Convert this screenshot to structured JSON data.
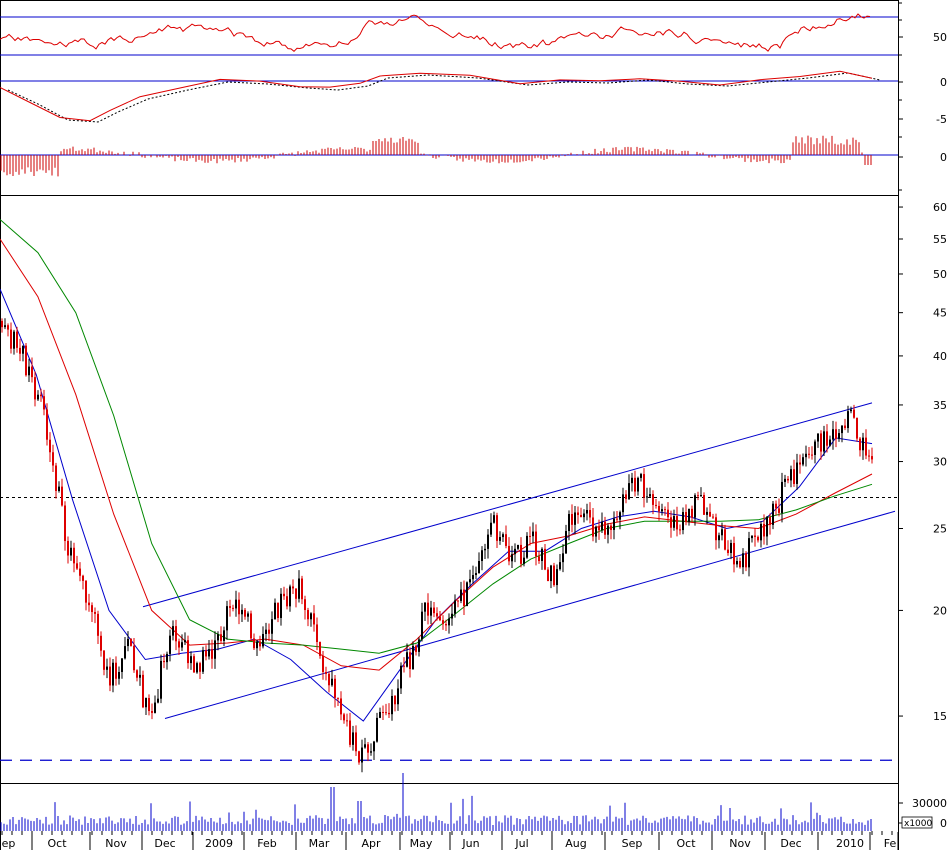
{
  "chart_data": {
    "type": "candlestick",
    "x_labels": [
      "Sep",
      "Oct",
      "Nov",
      "Dec",
      "2009",
      "Feb",
      "Mar",
      "Apr",
      "May",
      "Jun",
      "Jul",
      "Aug",
      "Sep",
      "Oct",
      "Nov",
      "Dec",
      "2010",
      "Fe"
    ],
    "price_ticks": [
      "15",
      "20",
      "25",
      "30",
      "35",
      "40",
      "45",
      "50",
      "55",
      "60"
    ],
    "rsi_ticks": [
      "50"
    ],
    "macd_ticks": [
      "0",
      "-5",
      "0"
    ],
    "volume_ticks": [
      "30000",
      "0"
    ],
    "volume_unit": "x1000",
    "price_scale": "log",
    "price_range": [
      12.5,
      62
    ],
    "support_level_dashed": 13.3,
    "dotted_level": 27.2,
    "channel_upper": {
      "start": [
        "Dec",
        20.2
      ],
      "end": [
        "Jan 2010",
        35.2
      ]
    },
    "channel_lower": {
      "start": [
        "Dec",
        14.9
      ],
      "end": [
        "Jan 2010",
        26.2
      ]
    },
    "price_path": [
      [
        "Sep",
        44
      ],
      [
        "Sep",
        40
      ],
      [
        "Oct",
        34
      ],
      [
        "Oct",
        24
      ],
      [
        "Oct",
        21
      ],
      [
        "Nov",
        16.5
      ],
      [
        "Nov",
        18
      ],
      [
        "Nov",
        14.5
      ],
      [
        "Dec",
        19.5
      ],
      [
        "Dec",
        17
      ],
      [
        "Dec",
        18
      ],
      [
        "2009",
        21
      ],
      [
        "2009",
        18
      ],
      [
        "Feb",
        20
      ],
      [
        "Feb",
        21.5
      ],
      [
        "Feb",
        17.5
      ],
      [
        "Mar",
        15
      ],
      [
        "Mar",
        13.3
      ],
      [
        "Mar",
        15
      ],
      [
        "Apr",
        17
      ],
      [
        "Apr",
        20
      ],
      [
        "May",
        19.5
      ],
      [
        "May",
        21
      ],
      [
        "Jun",
        25.5
      ],
      [
        "Jun",
        23
      ],
      [
        "Jul",
        24
      ],
      [
        "Jul",
        21.5
      ],
      [
        "Aug",
        26.5
      ],
      [
        "Aug",
        25
      ],
      [
        "Sep",
        26
      ],
      [
        "Sep",
        28.5
      ],
      [
        "Oct",
        26
      ],
      [
        "Oct",
        25.5
      ],
      [
        "Oct",
        27
      ],
      [
        "Nov",
        24
      ],
      [
        "Nov",
        23
      ],
      [
        "Dec",
        25.5
      ],
      [
        "Dec",
        28
      ],
      [
        "Dec",
        30.5
      ],
      [
        "2010",
        32.5
      ],
      [
        "2010",
        33.5
      ],
      [
        "Fe",
        30
      ]
    ],
    "moving_averages": [
      {
        "color": "#0000cc",
        "values": [
          48,
          38,
          27,
          20,
          17.5,
          17.8,
          18,
          18.5,
          17.5,
          16,
          14.8,
          17,
          19.5,
          21.5,
          23.5,
          23.5,
          25,
          25.8,
          26.2,
          25.8,
          25,
          25.5,
          28,
          32,
          31.5
        ]
      },
      {
        "color": "#dd0000",
        "values": [
          55,
          47,
          36,
          26,
          20,
          18.2,
          18.3,
          18.5,
          18.2,
          17.2,
          17,
          18.5,
          20.5,
          22.5,
          24,
          24.5,
          25.3,
          25.8,
          25.5,
          25.2,
          25,
          26,
          27.5,
          29
        ]
      },
      {
        "color": "#008800",
        "values": [
          58,
          53,
          45,
          34,
          24,
          19.5,
          18.5,
          18.3,
          18.2,
          18.0,
          17.8,
          18.3,
          19.8,
          21.5,
          23,
          24,
          25,
          25.5,
          25.5,
          25.5,
          25.6,
          26.3,
          27.3,
          28.2
        ]
      }
    ]
  }
}
